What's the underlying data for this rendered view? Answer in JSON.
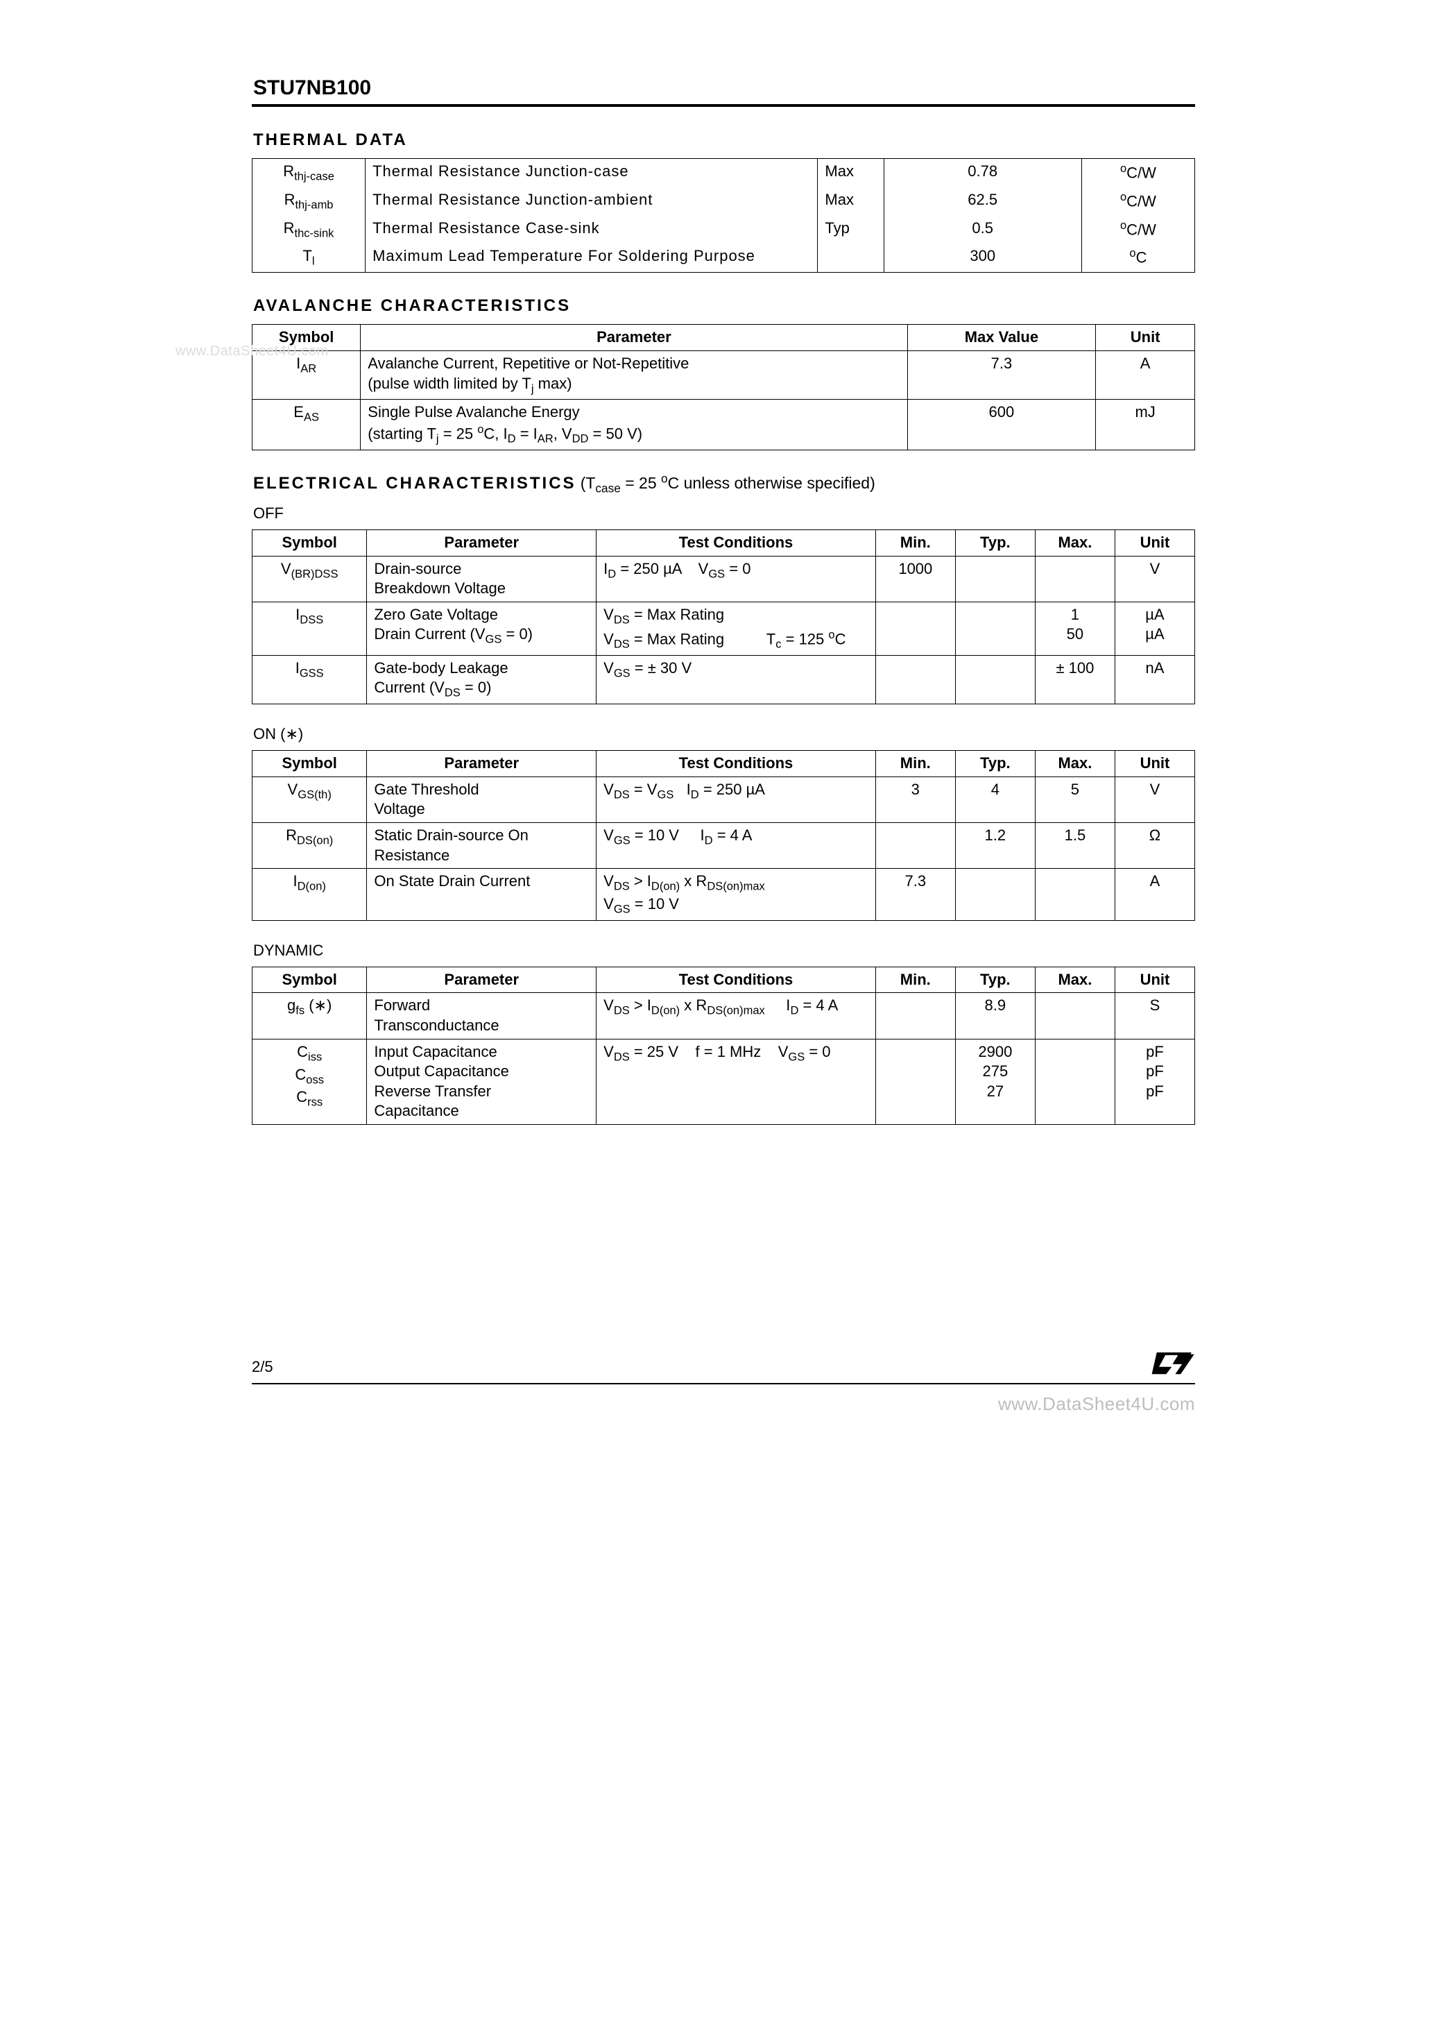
{
  "watermark_left": "www.DataSheet4U.com",
  "watermark_bottom": "www.DataSheet4U.com",
  "part": "STU7NB100",
  "page_num": "2/5",
  "logo_name": "ST",
  "thermal": {
    "title": "THERMAL  DATA",
    "rows": [
      {
        "sym_html": "R<span class='subsym'>thj-case</span>",
        "param": "Thermal  Resistance  Junction-case",
        "kind": "Max",
        "val": "0.78",
        "unit_html": "<span class='supsym'>o</span>C/W"
      },
      {
        "sym_html": "R<span class='subsym'>thj-amb</span>",
        "param": "Thermal  Resistance  Junction-ambient",
        "kind": "Max",
        "val": "62.5",
        "unit_html": "<span class='supsym'>o</span>C/W"
      },
      {
        "sym_html": "R<span class='subsym'>thc-sink</span>",
        "param": "Thermal  Resistance  Case-sink",
        "kind": "Typ",
        "val": "0.5",
        "unit_html": "<span class='supsym'>o</span>C/W"
      },
      {
        "sym_html": "T<span class='subsym'>l</span>",
        "param": "Maximum  Lead  Temperature  For  Soldering  Purpose",
        "kind": "",
        "val": "300",
        "unit_html": "<span class='supsym'>o</span>C"
      }
    ]
  },
  "avalanche": {
    "title": "AVALANCHE  CHARACTERISTICS",
    "headers": [
      "Symbol",
      "Parameter",
      "Max  Value",
      "Unit"
    ],
    "rows": [
      {
        "sym_html": "I<span class='subsym'>AR</span>",
        "param_html": "Avalanche Current, Repetitive or Not-Repetitive<br>(pulse width limited by T<span class='subsym'>j</span> max)",
        "val": "7.3",
        "unit": "A"
      },
      {
        "sym_html": "E<span class='subsym'>AS</span>",
        "param_html": "Single Pulse Avalanche Energy<br>(starting T<span class='subsym'>j</span> = 25 <span class='supsym'>o</span>C, I<span class='subsym'>D</span> = I<span class='subsym'>AR</span>, V<span class='subsym'>DD</span> = 50 V)",
        "val": "600",
        "unit": "mJ"
      }
    ]
  },
  "electrical": {
    "title": "ELECTRICAL  CHARACTERISTICS",
    "cond_html": "(T<span class='subsym'>case</span> = 25 <span class='supsym'>o</span>C unless otherwise specified)"
  },
  "headers6": [
    "Symbol",
    "Parameter",
    "Test Conditions",
    "Min.",
    "Typ.",
    "Max.",
    "Unit"
  ],
  "off": {
    "label": "OFF",
    "rows": [
      {
        "sym_html": "V<span class='subsym'>(BR)DSS</span>",
        "param_html": "Drain-source<br>Breakdown Voltage",
        "tc_html": "I<span class='subsym'>D</span> = 250 µA &nbsp;&nbsp; V<span class='subsym'>GS</span> = 0",
        "min": "1000",
        "typ": "",
        "max": "",
        "unit": "V"
      },
      {
        "sym_html": "I<span class='subsym'>DSS</span>",
        "param_html": "Zero Gate Voltage<br>Drain Current (V<span class='subsym'>GS</span> = 0)",
        "tc_html": "V<span class='subsym'>DS</span> = Max Rating<br>V<span class='subsym'>DS</span> = Max Rating &nbsp;&nbsp;&nbsp;&nbsp;&nbsp;&nbsp;&nbsp;&nbsp; T<span class='subsym'>c</span> = 125 <span class='supsym'>o</span>C",
        "min": "",
        "typ": "",
        "max": "1<br>50",
        "unit": "µA<br>µA"
      },
      {
        "sym_html": "I<span class='subsym'>GSS</span>",
        "param_html": "Gate-body Leakage<br>Current (V<span class='subsym'>DS</span> = 0)",
        "tc_html": "V<span class='subsym'>GS</span> = ± 30 V",
        "min": "",
        "typ": "",
        "max": "± 100",
        "unit": "nA"
      }
    ]
  },
  "on": {
    "label": "ON (∗)",
    "rows": [
      {
        "sym_html": "V<span class='subsym'>GS(th)</span>",
        "param_html": "Gate Threshold<br>Voltage",
        "tc_html": "V<span class='subsym'>DS</span> = V<span class='subsym'>GS</span> &nbsp; I<span class='subsym'>D</span> = 250 µA",
        "min": "3",
        "typ": "4",
        "max": "5",
        "unit": "V"
      },
      {
        "sym_html": "R<span class='subsym'>DS(on)</span>",
        "param_html": "Static Drain-source On<br>Resistance",
        "tc_html": "V<span class='subsym'>GS</span> = 10 V &nbsp;&nbsp;&nbsp; I<span class='subsym'>D</span> = 4 A",
        "min": "",
        "typ": "1.2",
        "max": "1.5",
        "unit": "Ω"
      },
      {
        "sym_html": "I<span class='subsym'>D(on)</span>",
        "param_html": "On State Drain Current",
        "tc_html": "V<span class='subsym'>DS</span> > I<span class='subsym'>D(on)</span> x R<span class='subsym'>DS(on)max</span><br>V<span class='subsym'>GS</span> = 10 V",
        "min": "7.3",
        "typ": "",
        "max": "",
        "unit": "A"
      }
    ]
  },
  "dynamic": {
    "label": "DYNAMIC",
    "rows": [
      {
        "sym_html": "g<span class='subsym'>fs</span> (∗)",
        "param_html": "Forward<br>Transconductance",
        "tc_html": "V<span class='subsym'>DS</span> > I<span class='subsym'>D(on)</span> x R<span class='subsym'>DS(on)max</span> &nbsp;&nbsp;&nbsp; I<span class='subsym'>D</span> = 4 A",
        "min": "",
        "typ": "8.9",
        "max": "",
        "unit": "S"
      },
      {
        "sym_html": "C<span class='subsym'>iss</span><br>C<span class='subsym'>oss</span><br>C<span class='subsym'>rss</span>",
        "param_html": "Input Capacitance<br>Output Capacitance<br>Reverse Transfer<br>Capacitance",
        "tc_html": "V<span class='subsym'>DS</span> = 25 V &nbsp;&nbsp; f = 1 MHz &nbsp;&nbsp; V<span class='subsym'>GS</span> = 0",
        "min": "",
        "typ": "2900<br>275<br>27",
        "max": "",
        "unit": "pF<br>pF<br>pF"
      }
    ]
  }
}
